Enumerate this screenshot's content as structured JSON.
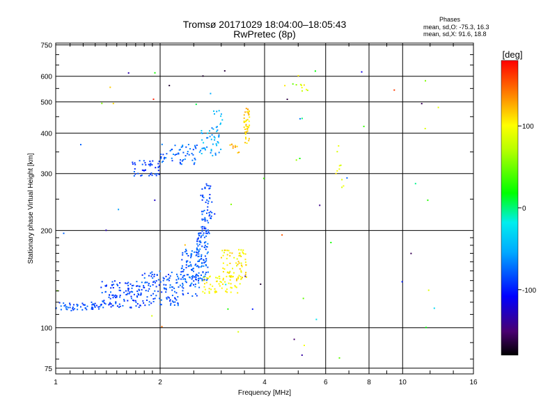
{
  "chart_data": {
    "type": "scatter",
    "title": "Tromsø 20171029 18:04:00–18:05:43",
    "subtitle": "RwPretec (8p)",
    "xlabel": "Frequency [MHz]",
    "ylabel": "Stationary phase Virtual Height [km]",
    "x_scale": "log2",
    "y_scale": "log",
    "xlim": [
      1,
      16
    ],
    "ylim": [
      72,
      760
    ],
    "grid": true,
    "x_major_ticks": [
      1,
      2,
      4,
      8,
      16
    ],
    "x_major_tick_labels": [
      "1",
      "2",
      "4",
      "8",
      "16"
    ],
    "x_grid_extra": [
      6,
      10
    ],
    "x_extra_tick_labels": [
      "6",
      "10"
    ],
    "x_minor_ticks": [
      1.1,
      1.2,
      1.3,
      1.4,
      1.5,
      1.6,
      1.7,
      1.8,
      1.9,
      2.5,
      3,
      3.5,
      5,
      7,
      9,
      12,
      14
    ],
    "y_ticks": [
      75,
      100,
      200,
      300,
      400,
      500,
      600,
      750
    ],
    "y_tick_labels": [
      "75",
      "100",
      "200",
      "300",
      "400",
      "500",
      "600",
      "750"
    ],
    "y_minor_ticks": [
      80,
      90,
      110,
      120,
      130,
      140,
      150,
      160,
      170,
      180,
      190,
      250,
      350,
      450,
      550,
      650,
      700
    ],
    "phases": {
      "heading": "Phases",
      "o_label": "mean, sd,O: -75.3, 16.3",
      "x_label": "mean, sd,X:  91.6, 18.8"
    },
    "colorbar": {
      "label": "[deg]",
      "min": -180,
      "max": 180,
      "ticks": [
        100,
        0,
        -100
      ],
      "tick_labels": [
        "100",
        "0",
        "-100"
      ],
      "colormap": "rainbow"
    },
    "series": [
      {
        "clusters": [
          {
            "f": [
              1.0,
              1.35
            ],
            "h": [
              113,
              120
            ],
            "ph": [
              -100,
              -70
            ],
            "n": 55
          },
          {
            "f": [
              1.35,
              1.75
            ],
            "h": [
              115,
              140
            ],
            "ph": [
              -105,
              -72
            ],
            "n": 110
          },
          {
            "f": [
              1.75,
              2.3
            ],
            "h": [
              117,
              150
            ],
            "ph": [
              -100,
              -70
            ],
            "n": 120
          },
          {
            "f": [
              2.3,
              2.6
            ],
            "h": [
              125,
              175
            ],
            "ph": [
              -95,
              -65
            ],
            "n": 100
          },
          {
            "f": [
              2.55,
              2.75
            ],
            "h": [
              140,
              200
            ],
            "ph": [
              -95,
              -65
            ],
            "n": 90
          },
          {
            "f": [
              2.62,
              2.82
            ],
            "h": [
              195,
              280
            ],
            "ph": [
              -100,
              -70
            ],
            "n": 60
          },
          {
            "f": [
              1.65,
              2.0
            ],
            "h": [
              295,
              330
            ],
            "ph": [
              -105,
              -75
            ],
            "n": 45
          },
          {
            "f": [
              2.0,
              2.6
            ],
            "h": [
              320,
              370
            ],
            "ph": [
              -95,
              -60
            ],
            "n": 55
          },
          {
            "f": [
              2.6,
              3.0
            ],
            "h": [
              340,
              420
            ],
            "ph": [
              -75,
              -35
            ],
            "n": 45
          },
          {
            "f": [
              2.85,
              3.05
            ],
            "h": [
              400,
              470
            ],
            "ph": [
              -60,
              -35
            ],
            "n": 10
          }
        ]
      },
      {
        "clusters": [
          {
            "f": [
              2.65,
              3.4
            ],
            "h": [
              128,
              145
            ],
            "ph": [
              90,
              110
            ],
            "n": 60
          },
          {
            "f": [
              3.0,
              3.55
            ],
            "h": [
              140,
              175
            ],
            "ph": [
              85,
              120
            ],
            "n": 70
          },
          {
            "f": [
              3.15,
              3.4
            ],
            "h": [
              345,
              370
            ],
            "ph": [
              110,
              140
            ],
            "n": 10
          },
          {
            "f": [
              3.48,
              3.62
            ],
            "h": [
              365,
              480
            ],
            "ph": [
              100,
              130
            ],
            "n": 45
          },
          {
            "f": [
              4.55,
              5.4
            ],
            "h": [
              540,
              570
            ],
            "ph": [
              40,
              110
            ],
            "n": 10
          },
          {
            "f": [
              6.4,
              6.9
            ],
            "h": [
              270,
              380
            ],
            "ph": [
              70,
              110
            ],
            "n": 10
          }
        ]
      },
      {
        "clusters": [
          {
            "f": [
              1.0,
              13.0
            ],
            "h": [
              80,
              660
            ],
            "ph": [
              -170,
              170
            ],
            "n": 60
          }
        ]
      }
    ]
  }
}
